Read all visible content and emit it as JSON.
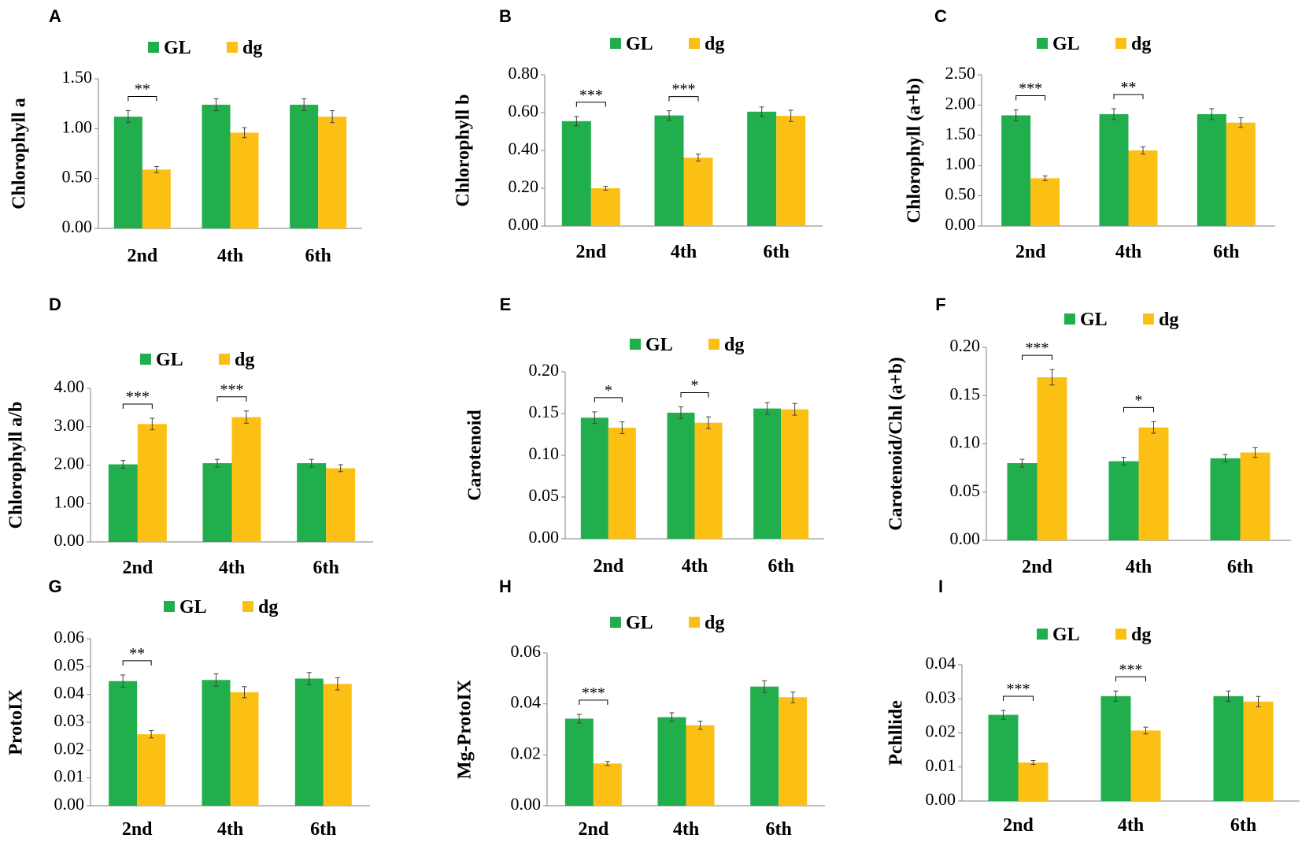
{
  "colors": {
    "GL": "#21ae4c",
    "dg": "#fcc015",
    "axis": "#808080",
    "errorbar": "#404040"
  },
  "panels": [
    {
      "letter": "A",
      "chart_data": {
        "type": "bar",
        "ylabel": "Chlorophyll a",
        "categories": [
          "2nd",
          "4th",
          "6th"
        ],
        "series": [
          {
            "name": "GL",
            "values": [
              1.12,
              1.24,
              1.24
            ],
            "errors": [
              0.06,
              0.06,
              0.06
            ]
          },
          {
            "name": "dg",
            "values": [
              0.59,
              0.96,
              1.12
            ],
            "errors": [
              0.03,
              0.05,
              0.06
            ]
          }
        ],
        "yticks": [
          "0.00",
          "0.50",
          "1.00",
          "1.50"
        ],
        "ylim": [
          0,
          1.5
        ],
        "significance": [
          "**",
          "",
          ""
        ]
      }
    },
    {
      "letter": "B",
      "chart_data": {
        "type": "bar",
        "ylabel": "Chlorophyll b",
        "categories": [
          "2nd",
          "4th",
          "6th"
        ],
        "series": [
          {
            "name": "GL",
            "values": [
              0.555,
              0.585,
              0.605
            ],
            "errors": [
              0.025,
              0.025,
              0.025
            ]
          },
          {
            "name": "dg",
            "values": [
              0.2,
              0.362,
              0.583
            ],
            "errors": [
              0.01,
              0.018,
              0.03
            ]
          }
        ],
        "yticks": [
          "0.00",
          "0.20",
          "0.40",
          "0.60",
          "0.80"
        ],
        "ylim": [
          0,
          0.8
        ],
        "significance": [
          "***",
          "***",
          ""
        ]
      }
    },
    {
      "letter": "C",
      "chart_data": {
        "type": "bar",
        "ylabel": "Chlorophyll (a+b)",
        "categories": [
          "2nd",
          "4th",
          "6th"
        ],
        "series": [
          {
            "name": "GL",
            "values": [
              1.83,
              1.85,
              1.85
            ],
            "errors": [
              0.09,
              0.09,
              0.09
            ]
          },
          {
            "name": "dg",
            "values": [
              0.79,
              1.25,
              1.71
            ],
            "errors": [
              0.04,
              0.06,
              0.08
            ]
          }
        ],
        "yticks": [
          "0.00",
          "0.50",
          "1.00",
          "1.50",
          "2.00",
          "2.50"
        ],
        "ylim": [
          0,
          2.5
        ],
        "significance": [
          "***",
          "**",
          ""
        ]
      }
    },
    {
      "letter": "D",
      "chart_data": {
        "type": "bar",
        "ylabel": "Chlorophyll a/b",
        "categories": [
          "2nd",
          "4th",
          "6th"
        ],
        "series": [
          {
            "name": "GL",
            "values": [
              2.02,
              2.05,
              2.05
            ],
            "errors": [
              0.1,
              0.1,
              0.1
            ]
          },
          {
            "name": "dg",
            "values": [
              3.07,
              3.25,
              1.92
            ],
            "errors": [
              0.15,
              0.16,
              0.09
            ]
          }
        ],
        "yticks": [
          "0.00",
          "1.00",
          "2.00",
          "3.00",
          "4.00"
        ],
        "ylim": [
          0,
          4
        ],
        "significance": [
          "***",
          "***",
          ""
        ]
      }
    },
    {
      "letter": "E",
      "chart_data": {
        "type": "bar",
        "ylabel": "Carotenoid",
        "categories": [
          "2nd",
          "4th",
          "6th"
        ],
        "series": [
          {
            "name": "GL",
            "values": [
              0.145,
              0.151,
              0.156
            ],
            "errors": [
              0.007,
              0.007,
              0.007
            ]
          },
          {
            "name": "dg",
            "values": [
              0.133,
              0.139,
              0.155
            ],
            "errors": [
              0.007,
              0.007,
              0.007
            ]
          }
        ],
        "yticks": [
          "0.00",
          "0.05",
          "0.10",
          "0.15",
          "0.20"
        ],
        "ylim": [
          0,
          0.2
        ],
        "significance": [
          "*",
          "*",
          ""
        ]
      }
    },
    {
      "letter": "F",
      "chart_data": {
        "type": "bar",
        "ylabel": "Carotenoid/Chl (a+b)",
        "categories": [
          "2nd",
          "4th",
          "6th"
        ],
        "series": [
          {
            "name": "GL",
            "values": [
              0.08,
              0.082,
              0.085
            ],
            "errors": [
              0.004,
              0.004,
              0.004
            ]
          },
          {
            "name": "dg",
            "values": [
              0.169,
              0.117,
              0.091
            ],
            "errors": [
              0.008,
              0.006,
              0.005
            ]
          }
        ],
        "yticks": [
          "0.00",
          "0.05",
          "0.10",
          "0.15",
          "0.20"
        ],
        "ylim": [
          0,
          0.2
        ],
        "significance": [
          "***",
          "*",
          ""
        ]
      }
    },
    {
      "letter": "G",
      "chart_data": {
        "type": "bar",
        "ylabel": "ProtoIX",
        "categories": [
          "2nd",
          "4th",
          "6th"
        ],
        "series": [
          {
            "name": "GL",
            "values": [
              0.0448,
              0.0452,
              0.0457
            ],
            "errors": [
              0.0022,
              0.0022,
              0.0022
            ]
          },
          {
            "name": "dg",
            "values": [
              0.0257,
              0.0408,
              0.0438
            ],
            "errors": [
              0.0013,
              0.002,
              0.0022
            ]
          }
        ],
        "yticks": [
          "0.00",
          "0.01",
          "0.02",
          "0.03",
          "0.04",
          "0.05",
          "0.06"
        ],
        "ylim": [
          0,
          0.06
        ],
        "significance": [
          "**",
          "",
          ""
        ]
      }
    },
    {
      "letter": "H",
      "chart_data": {
        "type": "bar",
        "ylabel": "Mg-ProtoIX",
        "categories": [
          "2nd",
          "4th",
          "6th"
        ],
        "series": [
          {
            "name": "GL",
            "values": [
              0.0342,
              0.0348,
              0.0468
            ],
            "errors": [
              0.0017,
              0.0017,
              0.0023
            ]
          },
          {
            "name": "dg",
            "values": [
              0.0166,
              0.0316,
              0.0426
            ],
            "errors": [
              0.0008,
              0.0016,
              0.0021
            ]
          }
        ],
        "yticks": [
          "0.00",
          "0.02",
          "0.04",
          "0.06"
        ],
        "ylim": [
          0,
          0.06
        ],
        "significance": [
          "***",
          "",
          ""
        ]
      }
    },
    {
      "letter": "I",
      "chart_data": {
        "type": "bar",
        "ylabel": "Pchllide",
        "categories": [
          "2nd",
          "4th",
          "6th"
        ],
        "series": [
          {
            "name": "GL",
            "values": [
              0.0253,
              0.0308,
              0.0308
            ],
            "errors": [
              0.0013,
              0.0015,
              0.0015
            ]
          },
          {
            "name": "dg",
            "values": [
              0.0113,
              0.0207,
              0.0292
            ],
            "errors": [
              0.0006,
              0.001,
              0.0015
            ]
          }
        ],
        "yticks": [
          "0.00",
          "0.01",
          "0.02",
          "0.03",
          "0.04"
        ],
        "ylim": [
          0,
          0.04
        ],
        "significance": [
          "***",
          "***",
          ""
        ]
      }
    }
  ]
}
